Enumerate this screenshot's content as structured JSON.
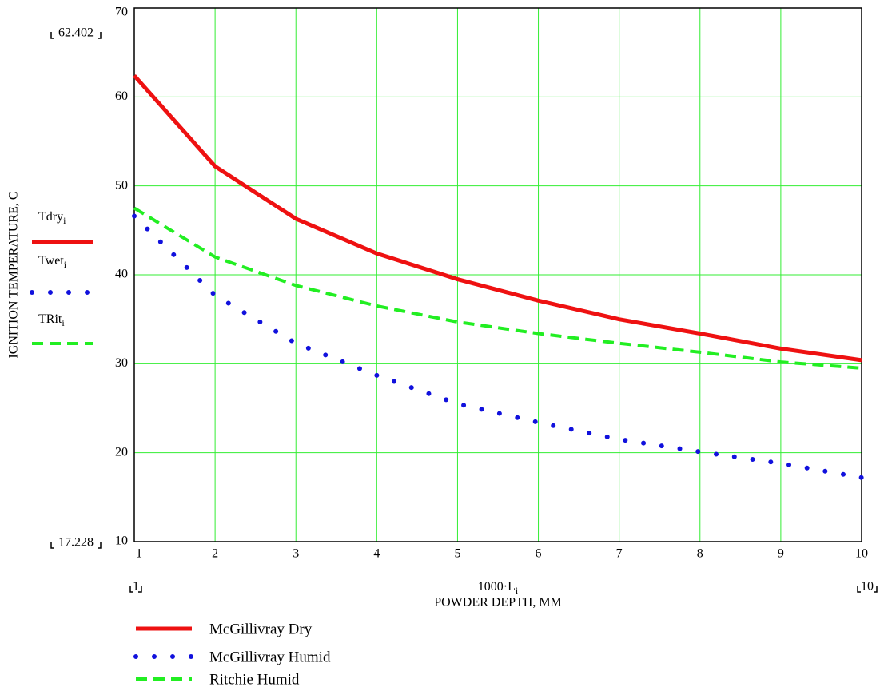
{
  "chart_data": {
    "type": "line",
    "y_axis_label": "IGNITION TEMPERATURE, C",
    "x_expression": {
      "main": "1000·L",
      "sub": "i"
    },
    "x_axis_label": "POWDER DEPTH, MM",
    "x": [
      1,
      2,
      3,
      4,
      5,
      6,
      7,
      8,
      9,
      10
    ],
    "series": [
      {
        "name": "McGillivray Dry",
        "trace_label": {
          "main": "Tdry",
          "sub": "i"
        },
        "color": "#ee1111",
        "line_style": "solid",
        "values": [
          62.4,
          52.2,
          46.3,
          42.4,
          39.5,
          37.1,
          35.0,
          33.4,
          31.7,
          30.4
        ]
      },
      {
        "name": "McGillivray Humid",
        "trace_label": {
          "main": "Twet",
          "sub": "i"
        },
        "color": "#1111dd",
        "line_style": "dotted",
        "values": [
          46.6,
          37.7,
          32.3,
          28.7,
          25.5,
          23.4,
          21.5,
          20.1,
          18.8,
          17.2
        ]
      },
      {
        "name": "Ritchie Humid",
        "trace_label": {
          "main": "TRit",
          "sub": "i"
        },
        "color": "#22ee22",
        "line_style": "dashed",
        "values": [
          47.5,
          42.0,
          38.8,
          36.5,
          34.7,
          33.4,
          32.3,
          31.3,
          30.2,
          29.5
        ]
      }
    ],
    "xlim": [
      1,
      10
    ],
    "xticks": [
      1,
      2,
      3,
      4,
      5,
      6,
      7,
      8,
      9,
      10
    ],
    "ylim": [
      10,
      70
    ],
    "yticks": [
      10,
      20,
      30,
      40,
      50,
      60,
      70
    ],
    "y_range_markers": [
      17.228,
      62.402
    ],
    "grid": true,
    "grid_color": "#33ee33"
  }
}
